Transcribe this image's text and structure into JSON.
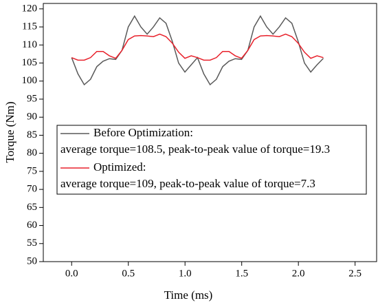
{
  "chart_data": {
    "type": "line",
    "xlabel": "Time (ms)",
    "ylabel": "Torque (Nm)",
    "x": [
      0,
      0.0555,
      0.111,
      0.1665,
      0.222,
      0.2775,
      0.333,
      0.3885,
      0.444,
      0.4995,
      0.555,
      0.6105,
      0.666,
      0.7215,
      0.777,
      0.8325,
      0.888,
      0.9435,
      0.999,
      1.0545,
      1.11,
      1.1655,
      1.221,
      1.2765,
      1.332,
      1.3875,
      1.443,
      1.4985,
      1.554,
      1.6095,
      1.665,
      1.7205,
      1.776,
      1.8315,
      1.887,
      1.9425,
      1.998,
      2.0535,
      2.109,
      2.1645,
      2.22
    ],
    "series": [
      {
        "name": "Before Optimization:",
        "description": "average torque=108.5, peak-to-peak value of torque=19.3",
        "color": "#595959",
        "values": [
          106.5,
          102,
          99,
          100.5,
          104,
          105.5,
          106.2,
          106,
          108.5,
          115,
          118,
          115,
          113,
          115,
          117.5,
          116,
          111,
          105,
          102.5,
          104.5,
          106.5,
          102,
          99,
          100.5,
          104,
          105.5,
          106.2,
          106,
          108.5,
          115,
          118,
          115,
          113,
          115,
          117.5,
          116,
          111,
          105,
          102.5,
          104.5,
          106.3
        ]
      },
      {
        "name": "Optimized:",
        "description": "average torque=109, peak-to-peak value of torque=7.3",
        "color": "#e8212b",
        "values": [
          106.5,
          105.8,
          105.8,
          106.5,
          108.2,
          108.2,
          107,
          106.3,
          108.5,
          111.5,
          112.5,
          112.6,
          112.5,
          112.3,
          113,
          112.3,
          110.5,
          108,
          106.3,
          107,
          106.5,
          105.8,
          105.8,
          106.5,
          108.2,
          108.2,
          107,
          106.3,
          108.5,
          111.5,
          112.5,
          112.6,
          112.5,
          112.3,
          113,
          112.3,
          110.5,
          108,
          106.3,
          107,
          106.5
        ]
      }
    ],
    "xlim": [
      -0.25,
      2.69
    ],
    "xticks": [
      {
        "value": 0,
        "label": "0.0"
      },
      0.5,
      {
        "value": 1,
        "label": "1.0"
      },
      1.5,
      {
        "value": 2,
        "label": "2.0"
      },
      2.5
    ],
    "ylim": [
      50,
      121.5
    ],
    "yticks": [
      50,
      55,
      60,
      65,
      70,
      75,
      80,
      85,
      90,
      95,
      100,
      105,
      110,
      115,
      120
    ],
    "grid": false
  }
}
